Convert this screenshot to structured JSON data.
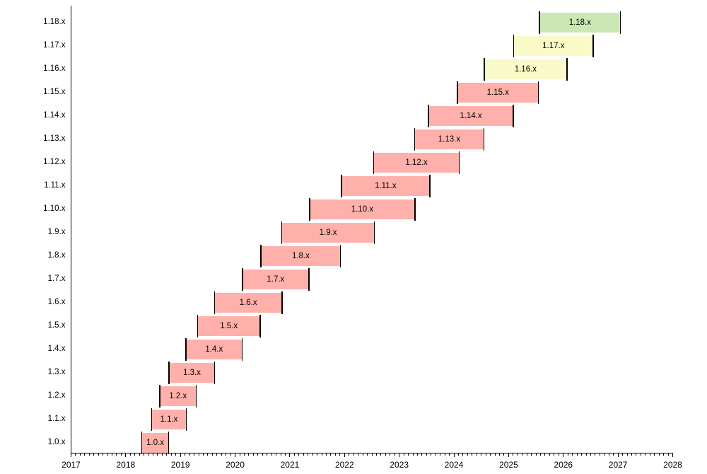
{
  "chart_data": {
    "type": "bar",
    "variant": "gantt-release-support-timeline",
    "orientation": "horizontal",
    "title": "",
    "xlabel": "",
    "ylabel": "",
    "xlim": [
      2017,
      2028
    ],
    "x_tick_labels": [
      "2017",
      "2018",
      "2019",
      "2020",
      "2021",
      "2022",
      "2023",
      "2024",
      "2025",
      "2026",
      "2027",
      "2028"
    ],
    "x_minor_ticks": "monthly",
    "grid": false,
    "legend": null,
    "categories_bottom_to_top": [
      "1.0.x",
      "1.1.x",
      "1.2.x",
      "1.3.x",
      "1.4.x",
      "1.5.x",
      "1.6.x",
      "1.7.x",
      "1.8.x",
      "1.9.x",
      "1.10.x",
      "1.11.x",
      "1.12.x",
      "1.13.x",
      "1.14.x",
      "1.15.x",
      "1.16.x",
      "1.17.x",
      "1.18.x"
    ],
    "bars": [
      {
        "label": "1.0.x",
        "start": 2018.29,
        "end": 2018.79,
        "status": "end-of-life"
      },
      {
        "label": "1.1.x",
        "start": 2018.47,
        "end": 2019.11,
        "status": "end-of-life"
      },
      {
        "label": "1.2.x",
        "start": 2018.62,
        "end": 2019.29,
        "status": "end-of-life"
      },
      {
        "label": "1.3.x",
        "start": 2018.79,
        "end": 2019.63,
        "status": "end-of-life"
      },
      {
        "label": "1.4.x",
        "start": 2019.1,
        "end": 2020.13,
        "status": "end-of-life"
      },
      {
        "label": "1.5.x",
        "start": 2019.31,
        "end": 2020.46,
        "status": "end-of-life"
      },
      {
        "label": "1.6.x",
        "start": 2019.62,
        "end": 2020.86,
        "status": "end-of-life"
      },
      {
        "label": "1.7.x",
        "start": 2020.13,
        "end": 2021.35,
        "status": "end-of-life"
      },
      {
        "label": "1.8.x",
        "start": 2020.47,
        "end": 2021.93,
        "status": "end-of-life"
      },
      {
        "label": "1.9.x",
        "start": 2020.85,
        "end": 2022.55,
        "status": "end-of-life"
      },
      {
        "label": "1.10.x",
        "start": 2021.36,
        "end": 2023.29,
        "status": "end-of-life"
      },
      {
        "label": "1.11.x",
        "start": 2021.94,
        "end": 2023.56,
        "status": "end-of-life"
      },
      {
        "label": "1.12.x",
        "start": 2022.53,
        "end": 2024.1,
        "status": "end-of-life"
      },
      {
        "label": "1.13.x",
        "start": 2023.28,
        "end": 2024.55,
        "status": "end-of-life"
      },
      {
        "label": "1.14.x",
        "start": 2023.53,
        "end": 2025.09,
        "status": "end-of-life"
      },
      {
        "label": "1.15.x",
        "start": 2024.06,
        "end": 2025.55,
        "status": "end-of-life"
      },
      {
        "label": "1.16.x",
        "start": 2024.55,
        "end": 2026.07,
        "status": "maintained"
      },
      {
        "label": "1.17.x",
        "start": 2025.09,
        "end": 2026.55,
        "status": "maintained"
      },
      {
        "label": "1.18.x",
        "start": 2025.56,
        "end": 2027.05,
        "status": "current"
      }
    ],
    "colors": {
      "end-of-life": "#ffb0aa",
      "maintained": "#fafac8",
      "current": "#cbe8b4",
      "marker": "#000000",
      "axis": "#000000",
      "text": "#000000",
      "background": "#ffffff"
    }
  }
}
